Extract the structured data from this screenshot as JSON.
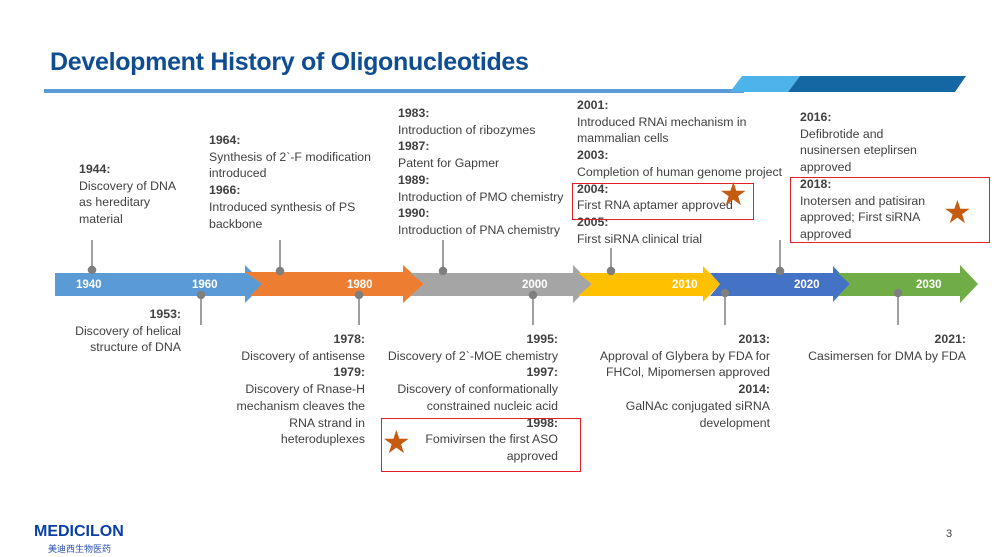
{
  "title": "Development History of Oligonucleotides",
  "colors": {
    "title": "#0f4d92",
    "seg1": "#5b9bd5",
    "seg2": "#ed7d31",
    "seg3": "#a5a5a5",
    "seg4": "#ffc000",
    "seg5": "#4472c4",
    "seg6": "#70ad47",
    "highlight_box": "#e0202a",
    "star": "#c55a11"
  },
  "timeline": {
    "years": [
      "1940",
      "1960",
      "1980",
      "2000",
      "2010",
      "2020",
      "2030"
    ]
  },
  "top_events": [
    {
      "lines": [
        {
          "t": "1944:",
          "b": true
        },
        {
          "t": "Discovery of DNA"
        },
        {
          "t": "as hereditary"
        },
        {
          "t": "material"
        }
      ]
    },
    {
      "lines": [
        {
          "t": "1964:",
          "b": true
        },
        {
          "t": "Synthesis of 2`-F modification"
        },
        {
          "t": "introduced"
        },
        {
          "t": "1966:",
          "b": true
        },
        {
          "t": "Introduced synthesis of PS"
        },
        {
          "t": "backbone"
        }
      ]
    },
    {
      "lines": [
        {
          "t": "1983:",
          "b": true
        },
        {
          "t": "Introduction of ribozymes"
        },
        {
          "t": "1987:",
          "b": true
        },
        {
          "t": "Patent for Gapmer"
        },
        {
          "t": "1989:",
          "b": true
        },
        {
          "t": "Introduction of PMO chemistry"
        },
        {
          "t": "1990:",
          "b": true
        },
        {
          "t": "Introduction of PNA chemistry"
        }
      ]
    },
    {
      "lines": [
        {
          "t": "2001:",
          "b": true
        },
        {
          "t": "Introduced RNAi mechanism in"
        },
        {
          "t": "mammalian cells"
        },
        {
          "t": "2003:",
          "b": true
        },
        {
          "t": "Completion of human genome project"
        },
        {
          "t": "2004:",
          "b": true
        },
        {
          "t": "First RNA aptamer approved"
        },
        {
          "t": "2005:",
          "b": true
        },
        {
          "t": "First siRNA clinical trial"
        }
      ]
    },
    {
      "lines": [
        {
          "t": "2016:",
          "b": true
        },
        {
          "t": "Defibrotide and"
        },
        {
          "t": "nusinersen eteplirsen"
        },
        {
          "t": "approved"
        },
        {
          "t": "2018:",
          "b": true
        },
        {
          "t": "Inotersen and patisiran"
        },
        {
          "t": "approved; First siRNA"
        },
        {
          "t": "approved"
        }
      ]
    }
  ],
  "bottom_events": [
    {
      "lines": [
        {
          "t": "1953:",
          "b": true
        },
        {
          "t": "Discovery of helical"
        },
        {
          "t": "structure of DNA"
        }
      ]
    },
    {
      "lines": [
        {
          "t": "1978:",
          "b": true
        },
        {
          "t": "Discovery of antisense"
        },
        {
          "t": "1979:",
          "b": true
        },
        {
          "t": "Discovery of Rnase-H"
        },
        {
          "t": "mechanism cleaves the"
        },
        {
          "t": "RNA strand in"
        },
        {
          "t": "heteroduplexes"
        }
      ]
    },
    {
      "lines": [
        {
          "t": "1995:",
          "b": true
        },
        {
          "t": "Discovery of 2`-MOE chemistry"
        },
        {
          "t": "1997:",
          "b": true
        },
        {
          "t": "Discovery of conformationally"
        },
        {
          "t": "constrained nucleic acid"
        },
        {
          "t": "1998:",
          "b": true
        },
        {
          "t": "Fomivirsen the first ASO"
        },
        {
          "t": "approved"
        }
      ]
    },
    {
      "lines": [
        {
          "t": "2013:",
          "b": true
        },
        {
          "t": "Approval of Glybera by FDA for"
        },
        {
          "t": "FHCol, Mipomersen approved"
        },
        {
          "t": "2014:",
          "b": true
        },
        {
          "t": "GalNAc conjugated siRNA"
        },
        {
          "t": "development"
        }
      ]
    },
    {
      "lines": [
        {
          "t": "2021:",
          "b": true
        },
        {
          "t": "Casimersen for DMA by FDA"
        }
      ]
    }
  ],
  "star_glyph": "★",
  "logo": {
    "name": "MEDICILON",
    "subtitle": "美迪西生物医药"
  },
  "page_number": "3"
}
